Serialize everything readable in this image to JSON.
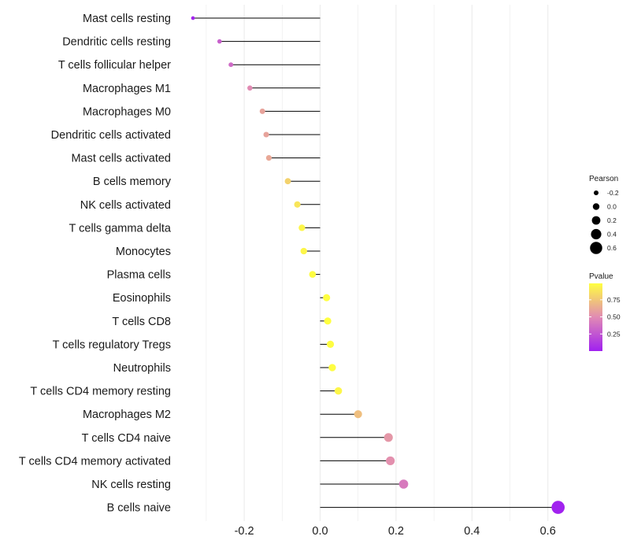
{
  "chart_data": {
    "type": "lollipop",
    "orientation": "horizontal",
    "xlim": [
      -0.3,
      0.64
    ],
    "x_ticks": [
      -0.2,
      0.0,
      0.2,
      0.4,
      0.6
    ],
    "x_tick_labels": [
      "-0.2",
      "0.0",
      "0.2",
      "0.4",
      "0.6"
    ],
    "gridlines": true,
    "categories": [
      "Mast cells resting",
      "Dendritic cells resting",
      "T cells follicular helper",
      "Macrophages M1",
      "Macrophages M0",
      "Dendritic cells activated",
      "Mast cells activated",
      "B cells memory",
      "NK cells activated",
      "T cells gamma delta",
      "Monocytes",
      "Plasma cells",
      "Eosinophils",
      "T cells CD8",
      "T cells regulatory  Tregs ",
      "Neutrophils",
      "T cells CD4 memory resting",
      "Macrophages M2",
      "T cells CD4 naive",
      "T cells CD4 memory activated",
      "NK cells resting",
      "B cells naive"
    ],
    "pearson": [
      -0.335,
      -0.265,
      -0.235,
      -0.185,
      -0.152,
      -0.142,
      -0.135,
      -0.085,
      -0.06,
      -0.048,
      -0.043,
      -0.02,
      0.017,
      0.02,
      0.027,
      0.032,
      0.048,
      0.1,
      0.18,
      0.185,
      0.22,
      0.627
    ],
    "pvalue": [
      0.02,
      0.3,
      0.35,
      0.5,
      0.6,
      0.6,
      0.62,
      0.8,
      0.88,
      0.95,
      0.95,
      0.98,
      0.99,
      0.99,
      0.98,
      0.98,
      0.95,
      0.72,
      0.55,
      0.52,
      0.42,
      0.01
    ],
    "size_legend": {
      "title": "Pearson",
      "entries": [
        {
          "label": "-0.2",
          "value": -0.2
        },
        {
          "label": "0.0",
          "value": 0.0
        },
        {
          "label": "0.2",
          "value": 0.2
        },
        {
          "label": "0.4",
          "value": 0.4
        },
        {
          "label": "0.6",
          "value": 0.6
        }
      ]
    },
    "color_legend": {
      "title": "Pvalue",
      "ticks": [
        {
          "label": "0.75",
          "value": 0.75
        },
        {
          "label": "0.50",
          "value": 0.5
        },
        {
          "label": "0.25",
          "value": 0.25
        }
      ],
      "range": [
        0.0,
        0.99
      ],
      "low_color": "#a020f0",
      "high_color": "#ffff00"
    },
    "line_color": "#000000",
    "grid_color": "#ebebeb"
  }
}
